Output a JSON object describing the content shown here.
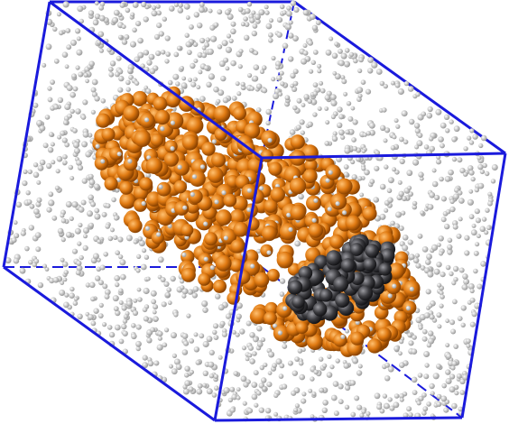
{
  "scene": {
    "kind": "molecular-dynamics-render",
    "background_color": "#ffffff",
    "box_color": "#1a1adc",
    "water_color": "#d9d9d9",
    "water_highlight": "#ffffff",
    "cluster_color": "#e07a12",
    "cluster_highlight": "#ffb04a",
    "core_color": "#3a3a3e",
    "core_highlight": "#8a8a90"
  }
}
